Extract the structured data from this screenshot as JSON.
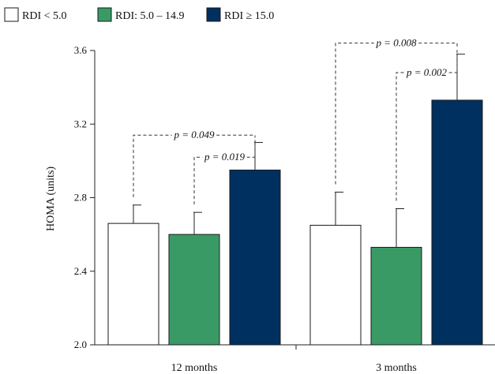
{
  "chart_data": {
    "type": "bar",
    "categories": [
      "12 months",
      "3 months"
    ],
    "series": [
      {
        "name": "RDI < 5.0",
        "color": "#ffffff",
        "values": [
          2.66,
          2.65
        ],
        "errors": [
          0.1,
          0.18
        ]
      },
      {
        "name": "RDI: 5.0 – 14.9",
        "color": "#3a9a66",
        "values": [
          2.6,
          2.53
        ],
        "errors": [
          0.12,
          0.21
        ]
      },
      {
        "name": "RDI ≥ 15.0",
        "color": "#00305f",
        "values": [
          2.95,
          3.33
        ],
        "errors": [
          0.15,
          0.25
        ]
      }
    ],
    "ylabel": "HOMA (units)",
    "ylim": [
      2.0,
      3.6
    ],
    "yticks": [
      "2.0",
      "2.4",
      "2.8",
      "3.2",
      "3.6"
    ],
    "legend_position": "top-left",
    "comparisons": [
      {
        "category": 0,
        "from": 0,
        "to": 2,
        "label": "p = 0.049",
        "y": 3.14
      },
      {
        "category": 0,
        "from": 1,
        "to": 2,
        "label": "p = 0.019",
        "y": 3.02
      },
      {
        "category": 1,
        "from": 0,
        "to": 2,
        "label": "p = 0.008",
        "y": 3.64
      },
      {
        "category": 1,
        "from": 1,
        "to": 2,
        "label": "p = 0.002",
        "y": 3.48
      }
    ]
  }
}
